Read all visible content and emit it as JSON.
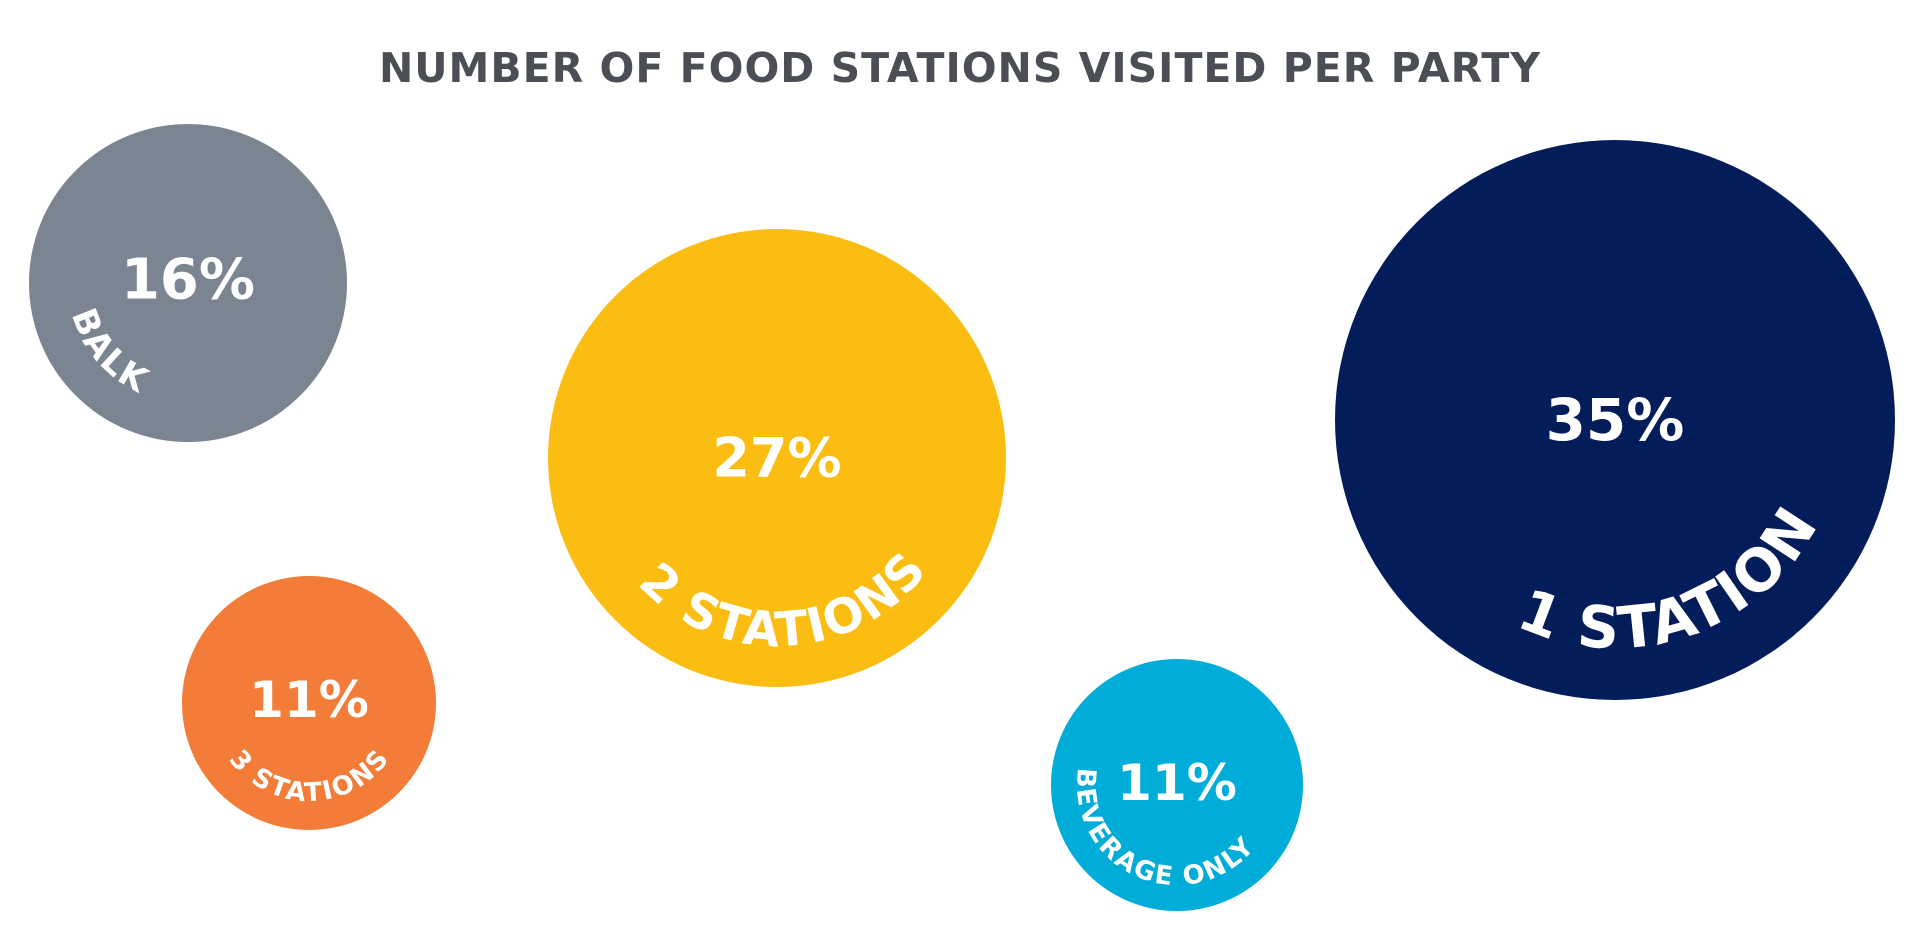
{
  "chart_data": {
    "type": "bubble",
    "title": "NUMBER OF FOOD STATIONS VISITED PER PARTY",
    "series": [
      {
        "name": "1 STATION",
        "value": 35,
        "value_label": "35%",
        "color": "#031c5a"
      },
      {
        "name": "2 STATIONS",
        "value": 27,
        "value_label": "27%",
        "color": "#fbbd12"
      },
      {
        "name": "BALK",
        "value": 16,
        "value_label": "16%",
        "color": "#7a8591"
      },
      {
        "name": "3 STATIONS",
        "value": 11,
        "value_label": "11%",
        "color": "#f27c38"
      },
      {
        "name": "BEVERAGE ONLY",
        "value": 11,
        "value_label": "11%",
        "color": "#00acd8"
      }
    ]
  }
}
